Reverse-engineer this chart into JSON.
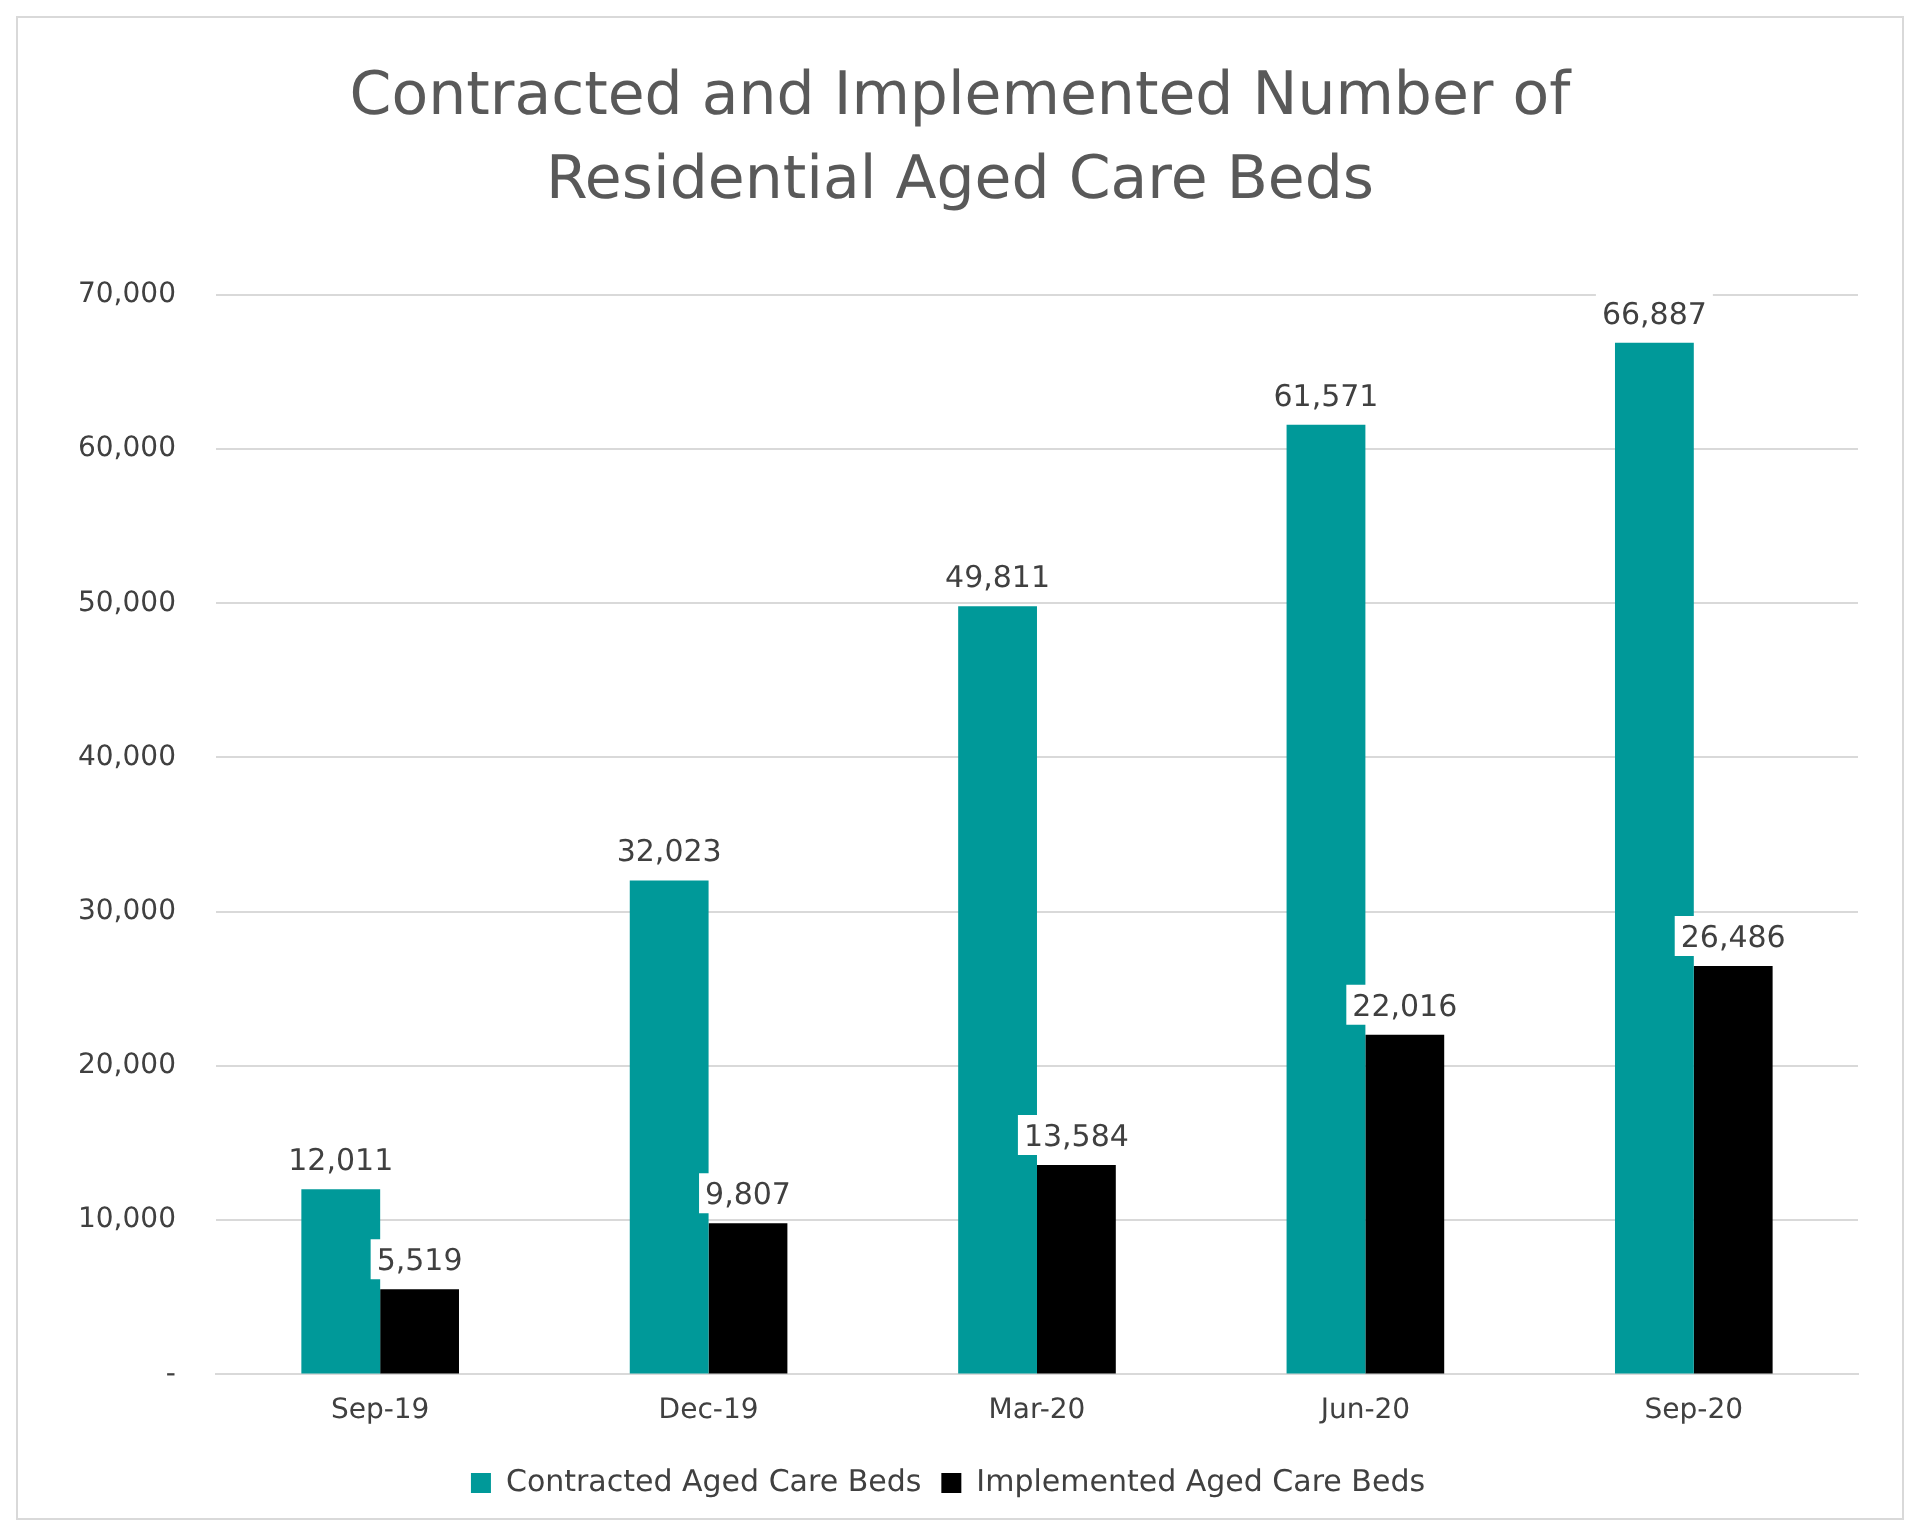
{
  "chart_data": {
    "type": "bar",
    "title": "Contracted and Implemented Number of Residential Aged Care Beds",
    "categories": [
      "Sep-19",
      "Dec-19",
      "Mar-20",
      "Jun-20",
      "Sep-20"
    ],
    "series": [
      {
        "name": "Contracted Aged Care Beds",
        "color": "#009999",
        "values": [
          12011,
          32023,
          49811,
          61571,
          66887
        ],
        "value_labels": [
          "12,011",
          "32,023",
          "49,811",
          "61,571",
          "66,887"
        ]
      },
      {
        "name": "Implemented Aged Care Beds",
        "color": "#000000",
        "values": [
          5519,
          9807,
          13584,
          22016,
          26486
        ],
        "value_labels": [
          "5,519",
          "9,807",
          "13,584",
          "22,016",
          "26,486"
        ]
      }
    ],
    "ylim": [
      0,
      70000
    ],
    "yticks": [
      {
        "value": 0,
        "label": "-"
      },
      {
        "value": 10000,
        "label": "10,000"
      },
      {
        "value": 20000,
        "label": "20,000"
      },
      {
        "value": 30000,
        "label": "30,000"
      },
      {
        "value": 40000,
        "label": "40,000"
      },
      {
        "value": 50000,
        "label": "50,000"
      },
      {
        "value": 60000,
        "label": "60,000"
      },
      {
        "value": 70000,
        "label": "70,000"
      }
    ],
    "grid": "y",
    "legend": "bottom"
  }
}
